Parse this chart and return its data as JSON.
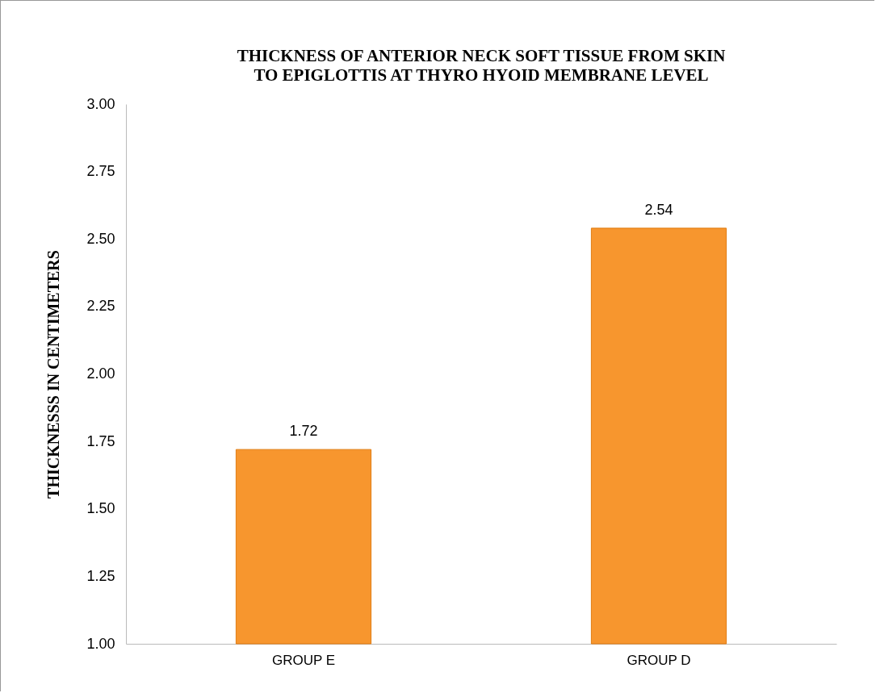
{
  "chart_data": {
    "type": "bar",
    "title": "THICKNESS OF ANTERIOR NECK SOFT TISSUE FROM SKIN TO EPIGLOTTIS AT THYRO HYOID MEMBRANE LEVEL",
    "ylabel": "THICKNESSS  IN  CENTIMETERS",
    "categories": [
      "GROUP E",
      "GROUP D"
    ],
    "values": [
      1.72,
      2.54
    ],
    "color": "#f7962e",
    "ylim": [
      1,
      3
    ],
    "yticks": [
      {
        "value": 1,
        "label": "1.00"
      },
      {
        "value": 1.25,
        "label": "1.25"
      },
      {
        "value": 1.5,
        "label": "1.50"
      },
      {
        "value": 1.75,
        "label": "1.75"
      },
      {
        "value": 2,
        "label": "2.00"
      },
      {
        "value": 2.25,
        "label": "2.25"
      },
      {
        "value": 2.5,
        "label": "2.50"
      },
      {
        "value": 2.75,
        "label": "2.75"
      },
      {
        "value": 3,
        "label": "3.00"
      }
    ],
    "data_labels": true,
    "grid": false
  }
}
